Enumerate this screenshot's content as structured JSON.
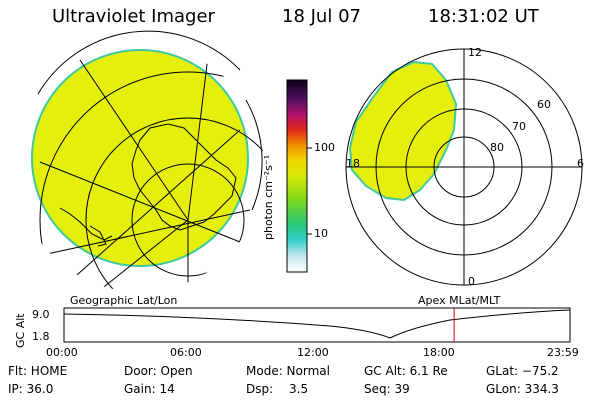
{
  "header": {
    "instrument": "Ultraviolet Imager",
    "date": "18 Jul 07",
    "time": "18:31:02 UT"
  },
  "colorbar": {
    "unit_label": "photon cm⁻²s⁻¹",
    "ticks": [
      "100",
      "10"
    ]
  },
  "polar_plot": {
    "mlt_labels": [
      "12",
      "18",
      "6",
      "0"
    ],
    "lat_labels": [
      "60",
      "70",
      "80"
    ]
  },
  "timeline": {
    "left_label": "Geographic Lat/Lon",
    "right_label": "Apex MLat/MLT",
    "axis_label": "GC Alt",
    "y_ticks": [
      "9.0",
      "1.8"
    ],
    "x_ticks": [
      "00:00",
      "06:00",
      "12:00",
      "18:00",
      "23:59"
    ],
    "current_time_fraction": 0.771
  },
  "status": {
    "flt": "Flt: HOME",
    "ip": "IP: 36.0",
    "door": "Door: Open",
    "gain": "Gain: 14",
    "mode": "Mode: Normal",
    "dsp_label": "Dsp:",
    "dsp_value": "3.5",
    "gc_alt": "GC Alt: 6.1 Re",
    "seq": "Seq: 39",
    "glat": "GLat: −75.2",
    "glon": "GLon: 334.3"
  },
  "colors": {
    "aurora_fill": "#e4f00c",
    "aurora_edge": "#40c8a0",
    "current_time_marker": "#cc0000"
  }
}
